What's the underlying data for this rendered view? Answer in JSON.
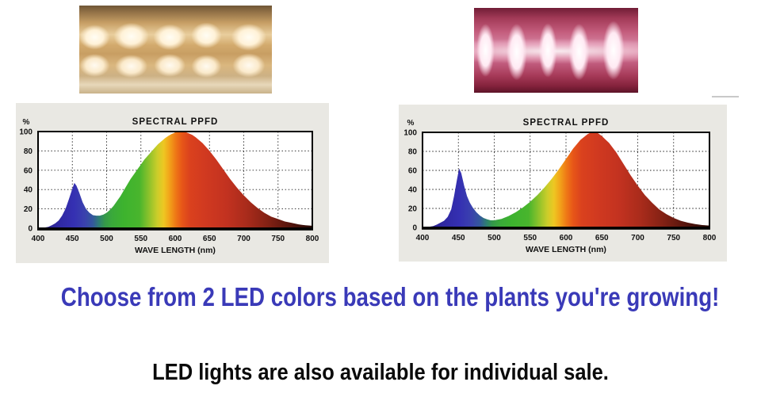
{
  "headline": {
    "text": "Choose from 2 LED colors based on the plants you're growing!",
    "color": "#3a3ab8"
  },
  "subheadline": {
    "text": "LED lights are also available for individual sale.",
    "color": "#0a0a0a"
  },
  "led_photos": {
    "left": "warm-white-led-strip",
    "right": "pink-red-led-strip"
  },
  "chart_data": [
    {
      "type": "area",
      "variant": "warm-white",
      "title": "SPECTRAL PPFD",
      "xlabel": "WAVE LENGTH (nm)",
      "ylabel": "%",
      "xlim": [
        400,
        800
      ],
      "ylim": [
        0,
        100
      ],
      "xticks": [
        400,
        450,
        500,
        550,
        600,
        650,
        700,
        750,
        800
      ],
      "yticks": [
        0,
        20,
        40,
        60,
        80,
        100
      ],
      "grid": true,
      "legend": "none",
      "panel_bg": "#e9e8e3",
      "x": [
        400,
        408,
        415,
        420,
        425,
        430,
        435,
        440,
        445,
        450,
        453,
        456,
        460,
        465,
        470,
        475,
        480,
        485,
        490,
        495,
        500,
        505,
        510,
        515,
        520,
        525,
        530,
        535,
        540,
        545,
        550,
        555,
        560,
        565,
        570,
        575,
        580,
        585,
        590,
        595,
        600,
        605,
        610,
        615,
        620,
        625,
        630,
        640,
        650,
        660,
        670,
        680,
        690,
        700,
        710,
        720,
        730,
        740,
        750,
        760,
        770,
        780,
        790,
        800
      ],
      "y": [
        0,
        0.5,
        1.5,
        3,
        5,
        8,
        13,
        20,
        30,
        41,
        47,
        44,
        37,
        27,
        20,
        16,
        13.5,
        13,
        13,
        14,
        16,
        19,
        23,
        28,
        33,
        39,
        45,
        51,
        56,
        61,
        66,
        71,
        75,
        79,
        83,
        87,
        90,
        93,
        95.5,
        97.5,
        99,
        100,
        100,
        99.5,
        98,
        96.5,
        94,
        88,
        80,
        71,
        61,
        51,
        42,
        34,
        27,
        21,
        16,
        12,
        9.5,
        7,
        5.5,
        4,
        3,
        2.5
      ],
      "peaks": [
        {
          "wl": 453,
          "pct": 47
        },
        {
          "wl": 608,
          "pct": 100
        }
      ],
      "spectrum_gradient": [
        {
          "wl": 400,
          "color": "#2b2184"
        },
        {
          "wl": 430,
          "color": "#2f28a2"
        },
        {
          "wl": 452,
          "color": "#3530b2"
        },
        {
          "wl": 468,
          "color": "#3a41ae"
        },
        {
          "wl": 480,
          "color": "#33589c"
        },
        {
          "wl": 489,
          "color": "#2e7f72"
        },
        {
          "wl": 497,
          "color": "#34984a"
        },
        {
          "wl": 508,
          "color": "#3aa93a"
        },
        {
          "wl": 525,
          "color": "#3db32e"
        },
        {
          "wl": 548,
          "color": "#49b52d"
        },
        {
          "wl": 562,
          "color": "#8ec22b"
        },
        {
          "wl": 574,
          "color": "#cbcd2a"
        },
        {
          "wl": 583,
          "color": "#eec722"
        },
        {
          "wl": 591,
          "color": "#f2a51a"
        },
        {
          "wl": 600,
          "color": "#ef7b16"
        },
        {
          "wl": 610,
          "color": "#e75618"
        },
        {
          "wl": 622,
          "color": "#da411e"
        },
        {
          "wl": 645,
          "color": "#d03920"
        },
        {
          "wl": 675,
          "color": "#c23220"
        },
        {
          "wl": 705,
          "color": "#a82b1b"
        },
        {
          "wl": 735,
          "color": "#832114"
        },
        {
          "wl": 765,
          "color": "#58150d"
        },
        {
          "wl": 785,
          "color": "#3a0e08"
        },
        {
          "wl": 800,
          "color": "#280a05"
        }
      ]
    },
    {
      "type": "area",
      "variant": "pink-red",
      "title": "SPECTRAL PPFD",
      "xlabel": "WAVE LENGTH (nm)",
      "ylabel": "%",
      "xlim": [
        400,
        800
      ],
      "ylim": [
        0,
        100
      ],
      "xticks": [
        400,
        450,
        500,
        550,
        600,
        650,
        700,
        750,
        800
      ],
      "yticks": [
        0,
        20,
        40,
        60,
        80,
        100
      ],
      "grid": true,
      "legend": "none",
      "panel_bg": "#e9e8e3",
      "x": [
        400,
        408,
        415,
        420,
        425,
        430,
        435,
        440,
        444,
        448,
        451,
        454,
        458,
        462,
        466,
        470,
        475,
        480,
        485,
        490,
        495,
        500,
        510,
        520,
        530,
        540,
        550,
        560,
        570,
        580,
        590,
        600,
        610,
        620,
        630,
        635,
        640,
        645,
        650,
        660,
        670,
        680,
        690,
        700,
        710,
        720,
        730,
        740,
        750,
        760,
        770,
        780,
        790,
        800
      ],
      "y": [
        0,
        0.5,
        1.5,
        3,
        5,
        7,
        11,
        19,
        33,
        50,
        62,
        57,
        44,
        33,
        26,
        21,
        16,
        12.5,
        10,
        8.5,
        7.5,
        7.5,
        9,
        12,
        16,
        21,
        27,
        34,
        42,
        51,
        61,
        72,
        83,
        92,
        98,
        100,
        100,
        99,
        96,
        89,
        79,
        67,
        55,
        44,
        34,
        26,
        19,
        14,
        10,
        7,
        5,
        3.5,
        2.5,
        2
      ],
      "peaks": [
        {
          "wl": 451,
          "pct": 62
        },
        {
          "wl": 637,
          "pct": 100
        }
      ],
      "spectrum_gradient": [
        {
          "wl": 400,
          "color": "#2b2184"
        },
        {
          "wl": 430,
          "color": "#2f28a2"
        },
        {
          "wl": 452,
          "color": "#3530b2"
        },
        {
          "wl": 468,
          "color": "#3a41ae"
        },
        {
          "wl": 480,
          "color": "#33589c"
        },
        {
          "wl": 489,
          "color": "#2e7f72"
        },
        {
          "wl": 497,
          "color": "#34984a"
        },
        {
          "wl": 508,
          "color": "#3aa93a"
        },
        {
          "wl": 525,
          "color": "#3db32e"
        },
        {
          "wl": 548,
          "color": "#49b52d"
        },
        {
          "wl": 562,
          "color": "#8ec22b"
        },
        {
          "wl": 574,
          "color": "#cbcd2a"
        },
        {
          "wl": 583,
          "color": "#eec722"
        },
        {
          "wl": 591,
          "color": "#f2a51a"
        },
        {
          "wl": 600,
          "color": "#ef7b16"
        },
        {
          "wl": 610,
          "color": "#e75618"
        },
        {
          "wl": 622,
          "color": "#da411e"
        },
        {
          "wl": 645,
          "color": "#d03920"
        },
        {
          "wl": 675,
          "color": "#c23220"
        },
        {
          "wl": 705,
          "color": "#a82b1b"
        },
        {
          "wl": 735,
          "color": "#832114"
        },
        {
          "wl": 765,
          "color": "#58150d"
        },
        {
          "wl": 785,
          "color": "#3a0e08"
        },
        {
          "wl": 800,
          "color": "#280a05"
        }
      ]
    }
  ]
}
